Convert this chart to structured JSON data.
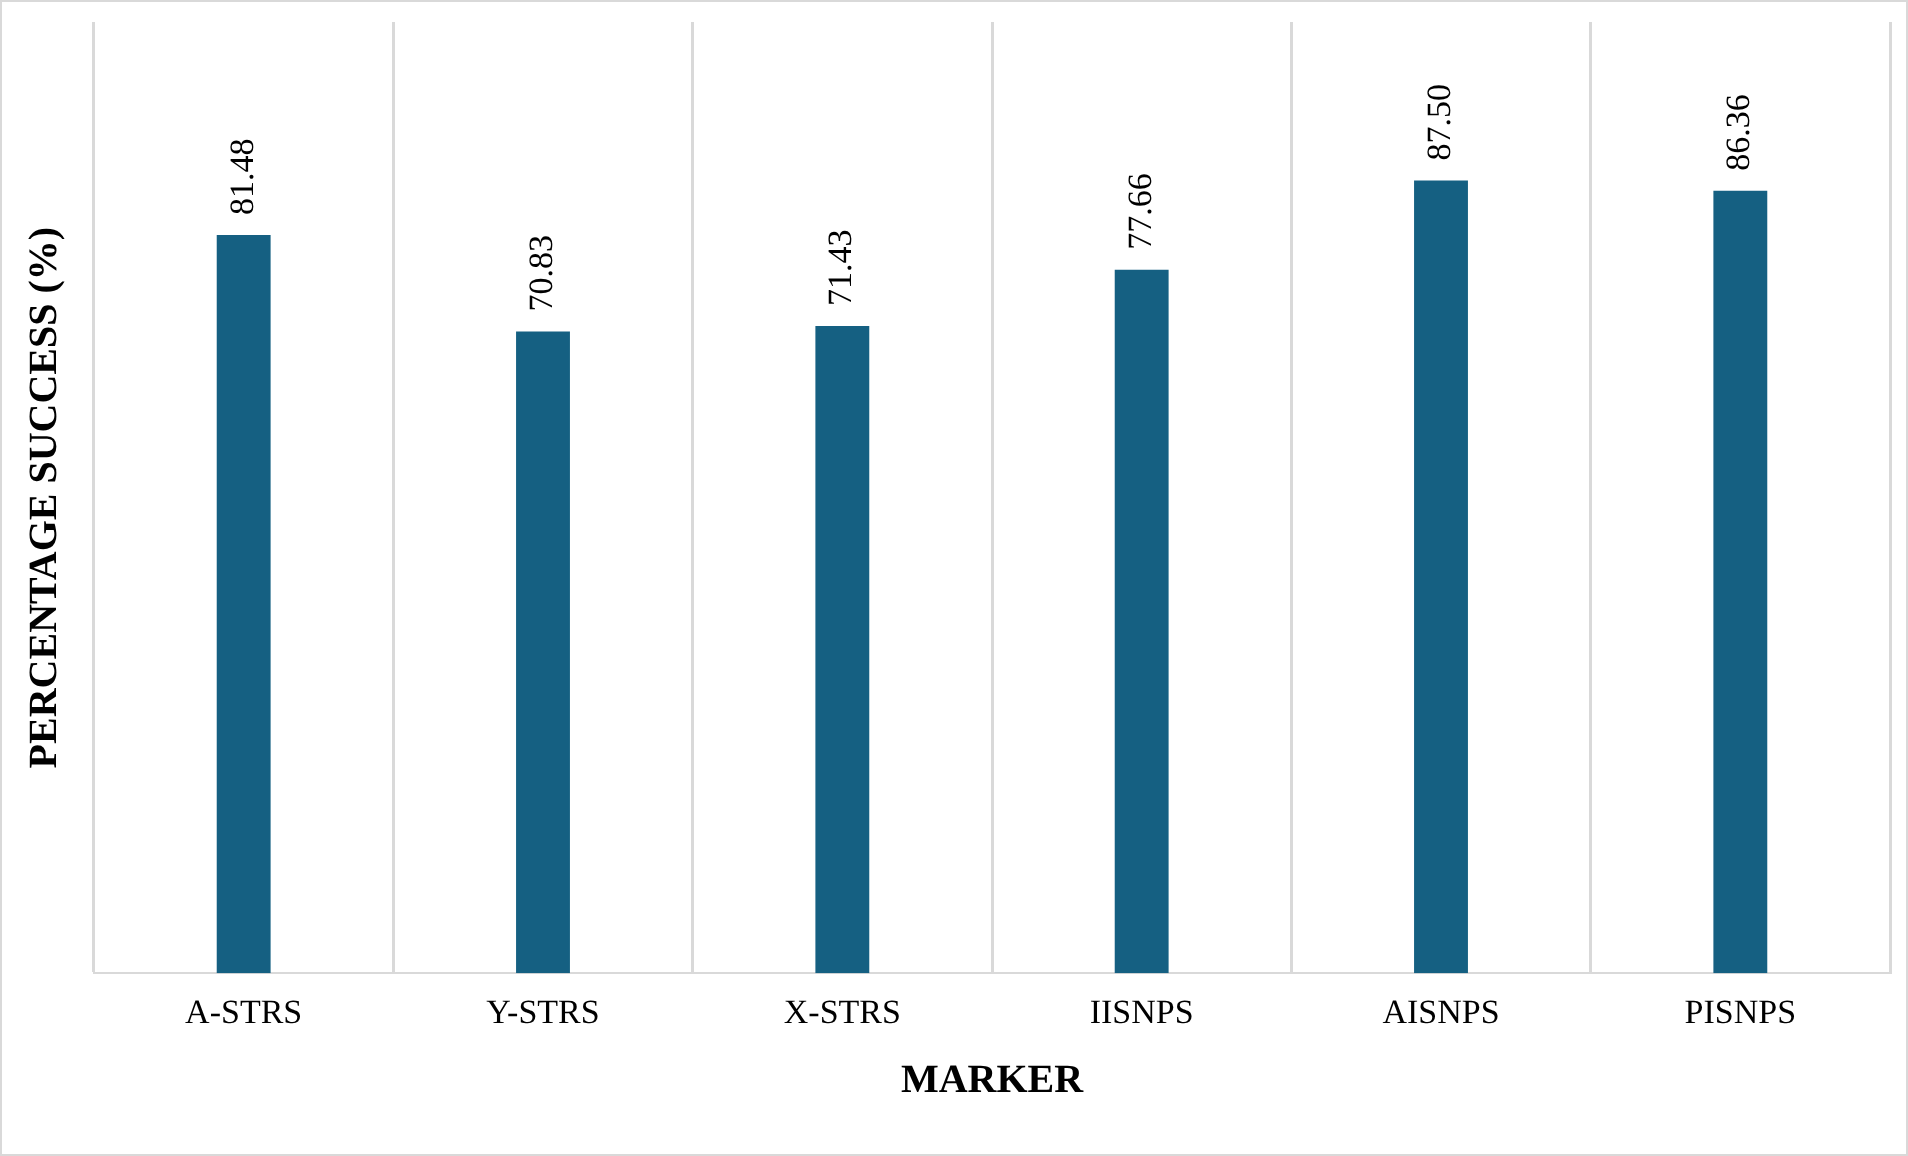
{
  "chart_data": {
    "type": "bar",
    "xlabel": "MARKER",
    "ylabel": "PERCENTAGE SUCCESS (%)",
    "categories": [
      "A-STRS",
      "Y-STRS",
      "X-STRS",
      "IISNPS",
      "AISNPS",
      "PISNPS"
    ],
    "values": [
      81.48,
      70.83,
      71.43,
      77.66,
      87.5,
      86.36
    ],
    "value_labels": [
      "81.48",
      "70.83",
      "71.43",
      "77.66",
      "87.50",
      "86.36"
    ],
    "color": "#156082",
    "grid": "x",
    "tick_labels": "x"
  }
}
